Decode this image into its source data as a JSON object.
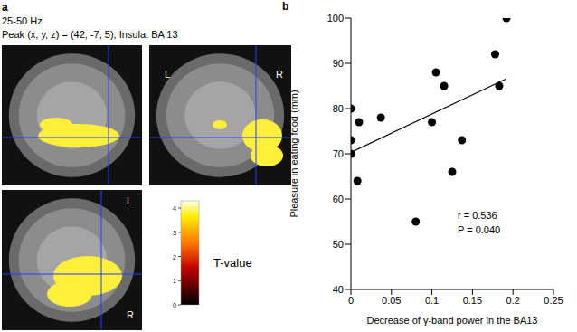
{
  "panel_a": {
    "label": "a",
    "title": "25-50 Hz",
    "subtitle": "Peak (x, y, z) = (42, -7, 5), Insula, BA 13",
    "coronal_labels": [
      "L",
      "R"
    ],
    "axial_labels": [
      "L",
      "R"
    ],
    "colorbar_label": "T-value",
    "colorbar_range": [
      0,
      4.3
    ],
    "colorbar_ticks": [
      0,
      1,
      2,
      3,
      4
    ]
  },
  "chart_data": {
    "type": "scatter",
    "label": "b",
    "x_label": "Decrease of γ-band power in the BA13",
    "y_label": "Pleasure in eating food (mm)",
    "annotations": [
      "r = 0.536",
      "P = 0.040"
    ],
    "xlim": [
      0,
      0.25
    ],
    "xticks": [
      0,
      0.05,
      0.1,
      0.15,
      0.2,
      0.25
    ],
    "ylim": [
      40,
      100
    ],
    "yticks": [
      40,
      50,
      60,
      70,
      80,
      90,
      100
    ],
    "series": [
      {
        "type": "scatter",
        "color": "#000000",
        "marker": "circle",
        "x": [
          0,
          0,
          0,
          0.008,
          0.01,
          0.037,
          0.08,
          0.1,
          0.105,
          0.115,
          0.125,
          0.137,
          0.178,
          0.183,
          0.192
        ],
        "values": [
          80,
          73,
          70,
          64,
          77,
          78,
          55,
          77,
          88,
          85,
          66,
          73,
          92,
          85,
          100
        ]
      },
      {
        "type": "line",
        "color": "#000000",
        "line_style": "solid",
        "x": [
          0,
          0.192
        ],
        "values": [
          70.3,
          86.6
        ]
      }
    ]
  }
}
